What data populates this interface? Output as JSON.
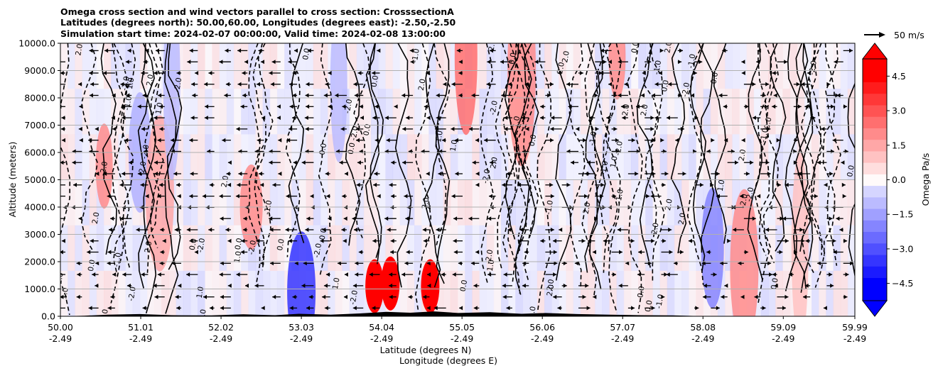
{
  "chart_data": {
    "type": "heatmap",
    "title_lines": [
      "Omega cross section and wind vectors parallel to cross section: CrosssectionA",
      "Latitudes (degrees north): 50.00,60.00, Longitudes (degrees east): -2.50,-2.50",
      "Simulation start time: 2024-02-07 00:00:00, Valid time: 2024-02-08 13:00:00"
    ],
    "ylabel": "Altitude (meters)",
    "xlabel_1": "Latitude (degrees N)",
    "xlabel_2": "Longitude (degrees E)",
    "ylim": [
      0,
      10000
    ],
    "y_ticks": [
      0,
      1000,
      2000,
      3000,
      4000,
      5000,
      6000,
      7000,
      8000,
      9000,
      10000
    ],
    "y_tick_labels": [
      "0.0",
      "1000.0",
      "2000.0",
      "3000.0",
      "4000.0",
      "5000.0",
      "6000.0",
      "7000.0",
      "8000.0",
      "9000.0",
      "10000.0"
    ],
    "xlim": [
      50.0,
      59.99
    ],
    "x_tick_lats": [
      "50.00",
      "51.01",
      "52.02",
      "53.03",
      "54.04",
      "55.05",
      "56.06",
      "57.07",
      "58.08",
      "59.09",
      "59.99"
    ],
    "x_tick_lons": [
      "-2.49",
      "-2.49",
      "-2.49",
      "-2.49",
      "-2.49",
      "-2.49",
      "-2.49",
      "-2.49",
      "-2.49",
      "-2.49",
      "-2.49"
    ],
    "x_tick_values": [
      50.0,
      51.01,
      52.02,
      53.03,
      54.04,
      55.05,
      56.06,
      57.07,
      58.08,
      59.09,
      59.99
    ],
    "grid": "horizontal",
    "colorbar": {
      "label": "Omega Pa/s",
      "vmin": -5.25,
      "vmax": 5.25,
      "ticks": [
        4.5,
        3.0,
        1.5,
        0.0,
        -1.5,
        -3.0,
        -4.5
      ],
      "tick_labels": [
        "4.5",
        "3.0",
        "1.5",
        "0.0",
        "−1.5",
        "−3.0",
        "−4.5"
      ],
      "extend": "both"
    },
    "contour_labels": [
      "0.0",
      "1.0",
      "-1.0",
      "2.0",
      "-2.0"
    ],
    "vector_key": {
      "label": "50 m/s",
      "value": 50
    },
    "omega_features": [
      {
        "lat": 50.55,
        "alt": 5500,
        "value": 2.0
      },
      {
        "lat": 51.0,
        "alt": 6000,
        "value": -1.2
      },
      {
        "lat": 51.25,
        "alt": 4500,
        "value": 1.5
      },
      {
        "lat": 51.4,
        "alt": 8500,
        "value": -1.0
      },
      {
        "lat": 52.4,
        "alt": 4000,
        "value": 2.0
      },
      {
        "lat": 53.03,
        "alt": 900,
        "value": -3.5
      },
      {
        "lat": 53.5,
        "alt": 8500,
        "value": -1.0
      },
      {
        "lat": 53.95,
        "alt": 1100,
        "value": 5.5
      },
      {
        "lat": 54.15,
        "alt": 1200,
        "value": 5.5
      },
      {
        "lat": 54.65,
        "alt": 1100,
        "value": 5.5
      },
      {
        "lat": 55.1,
        "alt": 9500,
        "value": 2.5
      },
      {
        "lat": 55.8,
        "alt": 9000,
        "value": 2.0
      },
      {
        "lat": 57.0,
        "alt": 9500,
        "value": 2.0
      },
      {
        "lat": 58.2,
        "alt": 2500,
        "value": -2.0
      },
      {
        "lat": 58.6,
        "alt": 1800,
        "value": 2.0
      },
      {
        "lat": 59.3,
        "alt": 2500,
        "value": 1.0
      }
    ]
  }
}
